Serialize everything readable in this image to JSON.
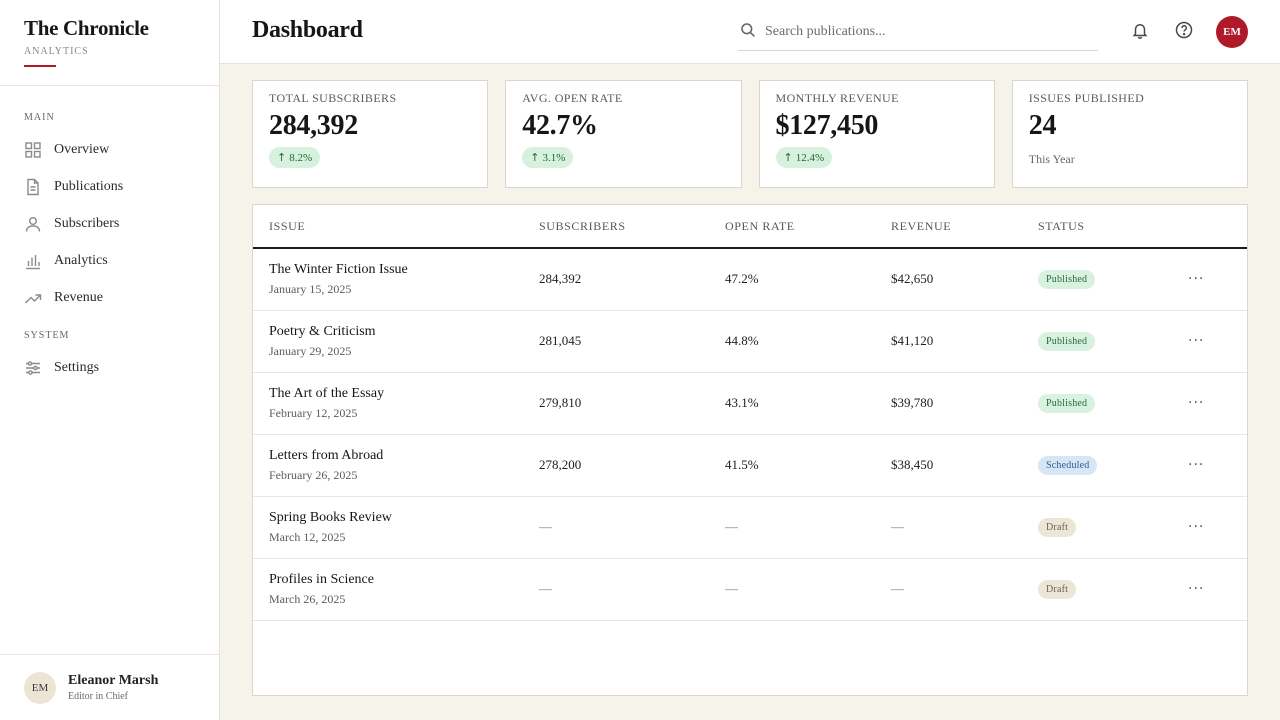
{
  "brand": {
    "title": "The Chronicle",
    "subtitle": "ANALYTICS"
  },
  "nav": {
    "main_label": "MAIN",
    "system_label": "SYSTEM",
    "items": [
      {
        "label": "Overview",
        "icon": "grid-icon"
      },
      {
        "label": "Publications",
        "icon": "document-icon"
      },
      {
        "label": "Subscribers",
        "icon": "user-icon"
      },
      {
        "label": "Analytics",
        "icon": "bar-chart-icon"
      },
      {
        "label": "Revenue",
        "icon": "trend-up-icon"
      }
    ],
    "system_items": [
      {
        "label": "Settings",
        "icon": "sliders-icon"
      }
    ]
  },
  "user": {
    "initials": "EM",
    "name": "Eleanor Marsh",
    "role": "Editor in Chief"
  },
  "header": {
    "title": "Dashboard",
    "search_placeholder": "Search publications...",
    "avatar_initials": "EM"
  },
  "stats": [
    {
      "label": "Total Subscribers",
      "value": "284,392",
      "change": "8.2%"
    },
    {
      "label": "Avg. Open Rate",
      "value": "42.7%",
      "change": "3.1%"
    },
    {
      "label": "Monthly Revenue",
      "value": "$127,450",
      "change": "12.4%"
    },
    {
      "label": "Issues Published",
      "value": "24",
      "note": "This Year"
    }
  ],
  "table": {
    "columns": [
      "ISSUE",
      "SUBSCRIBERS",
      "OPEN RATE",
      "REVENUE",
      "STATUS"
    ],
    "rows": [
      {
        "title": "The Winter Fiction Issue",
        "date": "January 15, 2025",
        "subscribers": "284,392",
        "open_rate": "47.2%",
        "revenue": "$42,650",
        "status": "Published"
      },
      {
        "title": "Poetry & Criticism",
        "date": "January 29, 2025",
        "subscribers": "281,045",
        "open_rate": "44.8%",
        "revenue": "$41,120",
        "status": "Published"
      },
      {
        "title": "The Art of the Essay",
        "date": "February 12, 2025",
        "subscribers": "279,810",
        "open_rate": "43.1%",
        "revenue": "$39,780",
        "status": "Published"
      },
      {
        "title": "Letters from Abroad",
        "date": "February 26, 2025",
        "subscribers": "278,200",
        "open_rate": "41.5%",
        "revenue": "$38,450",
        "status": "Scheduled"
      },
      {
        "title": "Spring Books Review",
        "date": "March 12, 2025",
        "subscribers": "—",
        "open_rate": "—",
        "revenue": "—",
        "status": "Draft"
      },
      {
        "title": "Profiles in Science",
        "date": "March 26, 2025",
        "subscribers": "—",
        "open_rate": "—",
        "revenue": "—",
        "status": "Draft"
      }
    ],
    "more_label": "···"
  },
  "colors": {
    "accent": "#b0192a",
    "background": "#f6f3ea",
    "published": "#d9f1df",
    "scheduled": "#d7e6f6",
    "draft": "#ece6d6"
  }
}
